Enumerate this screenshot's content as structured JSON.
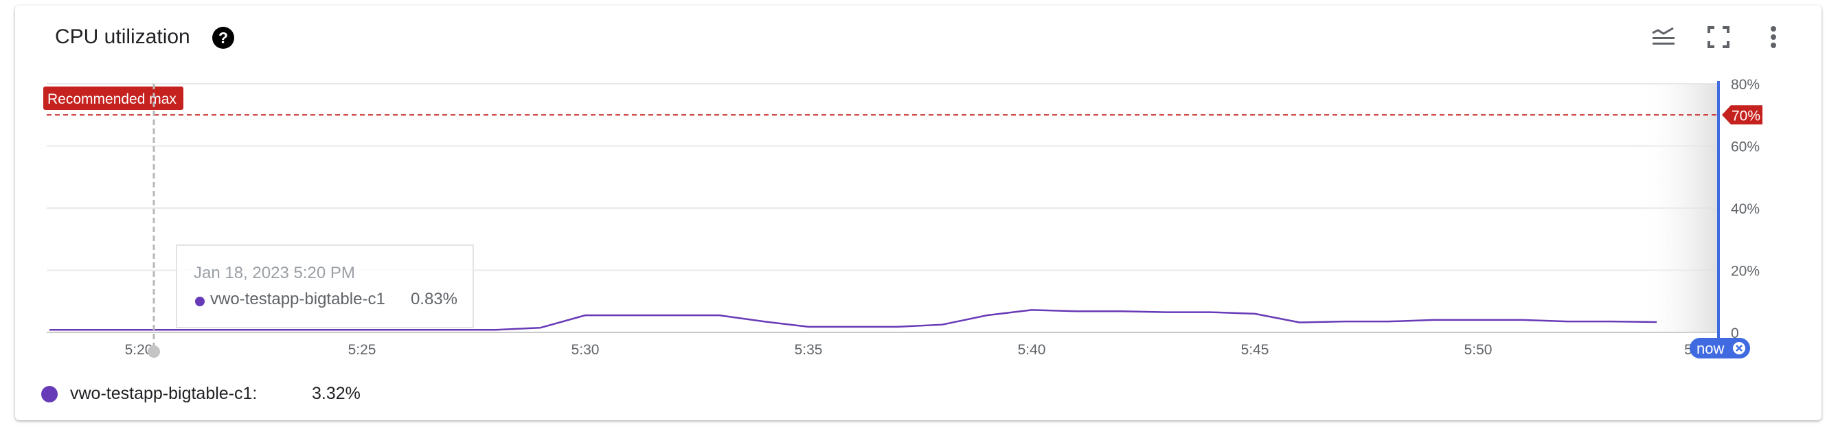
{
  "card": {
    "title": "CPU utilization",
    "icons": {
      "help": "help-circle-icon",
      "legend_toggle": "legend-toggle-icon",
      "fullscreen": "fullscreen-icon",
      "more": "more-vert-icon"
    }
  },
  "threshold": {
    "label": "Recommended max",
    "value_label": "70%",
    "color": "#c5221f"
  },
  "chart_data": {
    "type": "line",
    "title": "CPU utilization",
    "xlabel": "",
    "ylabel": "",
    "x_ticks": [
      "5:20",
      "5:25",
      "5:30",
      "5:35",
      "5:40",
      "5:45",
      "5:50",
      "5"
    ],
    "y_ticks": [
      "0",
      "20%",
      "40%",
      "60%",
      "80%"
    ],
    "ylim": [
      0,
      80
    ],
    "threshold": 70,
    "grid": true,
    "series": [
      {
        "name": "vwo-testapp-bigtable-c1",
        "color": "#673ab7",
        "x": [
          "5:18",
          "5:19",
          "5:20",
          "5:21",
          "5:22",
          "5:23",
          "5:24",
          "5:25",
          "5:26",
          "5:27",
          "5:28",
          "5:29",
          "5:30",
          "5:31",
          "5:32",
          "5:33",
          "5:34",
          "5:35",
          "5:36",
          "5:37",
          "5:38",
          "5:39",
          "5:40",
          "5:41",
          "5:42",
          "5:43",
          "5:44",
          "5:45",
          "5:46",
          "5:47",
          "5:48",
          "5:49",
          "5:50",
          "5:51",
          "5:52",
          "5:53",
          "5:54"
        ],
        "values": [
          0.83,
          0.83,
          0.83,
          0.83,
          0.83,
          0.83,
          0.83,
          0.83,
          0.83,
          0.83,
          0.83,
          1.5,
          5.5,
          5.5,
          5.5,
          5.5,
          3.5,
          1.8,
          1.8,
          1.8,
          2.5,
          5.5,
          7.2,
          6.8,
          6.8,
          6.5,
          6.5,
          6.0,
          3.2,
          3.5,
          3.5,
          4.0,
          4.0,
          4.0,
          3.5,
          3.5,
          3.32
        ]
      }
    ],
    "legend": "bottom-left"
  },
  "tooltip": {
    "date": "Jan 18, 2023 5:20 PM",
    "series_name": "vwo-testapp-bigtable-c1",
    "value": "0.83%"
  },
  "now_chip": {
    "label": "now"
  },
  "legend": {
    "series_name": "vwo-testapp-bigtable-c1:",
    "value": "3.32%"
  }
}
